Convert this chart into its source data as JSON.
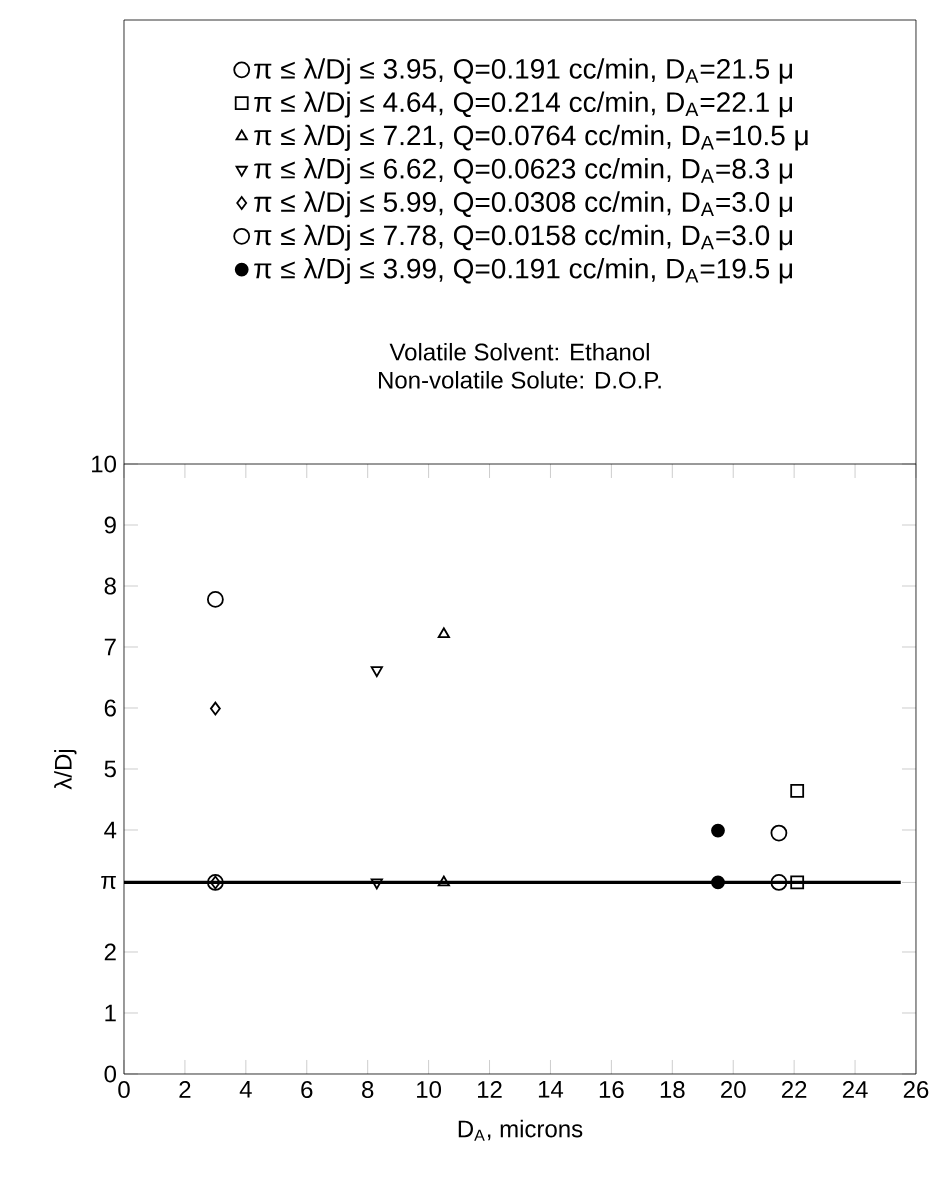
{
  "chart_data": {
    "type": "scatter",
    "xlabel": "D$_{A}$, microns",
    "ylabel": "λ/Dj",
    "xlim": [
      0,
      26
    ],
    "xticks": [
      0,
      2,
      4,
      6,
      8,
      10,
      12,
      14,
      16,
      18,
      20,
      22,
      24,
      26
    ],
    "ylim": [
      0,
      10
    ],
    "yticks": [
      0,
      1,
      2,
      {
        "value": 3.14,
        "label": "π"
      },
      4,
      5,
      6,
      7,
      8,
      9,
      10
    ],
    "legend": "top",
    "grid": false,
    "annotations": [
      "Volatile Solvent: Ethanol",
      "Non-volatile Solute: D.O.P."
    ],
    "ref_lines": [
      {
        "axis": "y",
        "value": 3.14,
        "color": "#000000",
        "line_style": "solid"
      }
    ],
    "series": [
      {
        "name": "π ≤ λ/Dj ≤ 3.95, Q=0.191 cc/min,  D$_{A}$=21.5 μ",
        "color": "#000000",
        "marker": "circle",
        "x": [
          21.5,
          21.5
        ],
        "values": [
          3.14,
          3.95
        ]
      },
      {
        "name": "π ≤ λ/Dj ≤ 4.64, Q=0.214 cc/min,  D$_{A}$=22.1 μ",
        "color": "#000000",
        "marker": "square",
        "x": [
          22.1,
          22.1
        ],
        "values": [
          3.14,
          4.64
        ]
      },
      {
        "name": "π ≤ λ/Dj ≤ 7.21, Q=0.0764 cc/min, D$_{A}$=10.5 μ",
        "color": "#000000",
        "marker": "triangle",
        "x": [
          10.5,
          10.5
        ],
        "values": [
          3.14,
          7.21
        ]
      },
      {
        "name": "π ≤ λ/Dj ≤ 6.62, Q=0.0623 cc/min, D$_{A}$=8.3 μ",
        "color": "#000000",
        "marker": "triangle_down",
        "x": [
          8.3,
          8.3
        ],
        "values": [
          3.14,
          6.62
        ]
      },
      {
        "name": "π ≤ λ/Dj ≤ 5.99, Q=0.0308 cc/min, D$_{A}$=3.0 μ",
        "color": "#000000",
        "marker": "diamond",
        "x": [
          3.0,
          3.0
        ],
        "values": [
          3.14,
          5.99
        ]
      },
      {
        "name": "π ≤ λ/Dj ≤ 7.78, Q=0.0158 cc/min, D$_{A}$=3.0 μ",
        "color": "#000000",
        "marker": "circle",
        "x": [
          3.0,
          3.0
        ],
        "values": [
          3.14,
          7.78
        ]
      },
      {
        "name": "π ≤ λ/Dj ≤ 3.99, Q=0.191 cc/min,  D$_{A}$=19.5 μ",
        "color": "#000000",
        "marker": "filled_circle",
        "x": [
          19.5,
          19.5
        ],
        "values": [
          3.14,
          3.99
        ]
      }
    ]
  }
}
